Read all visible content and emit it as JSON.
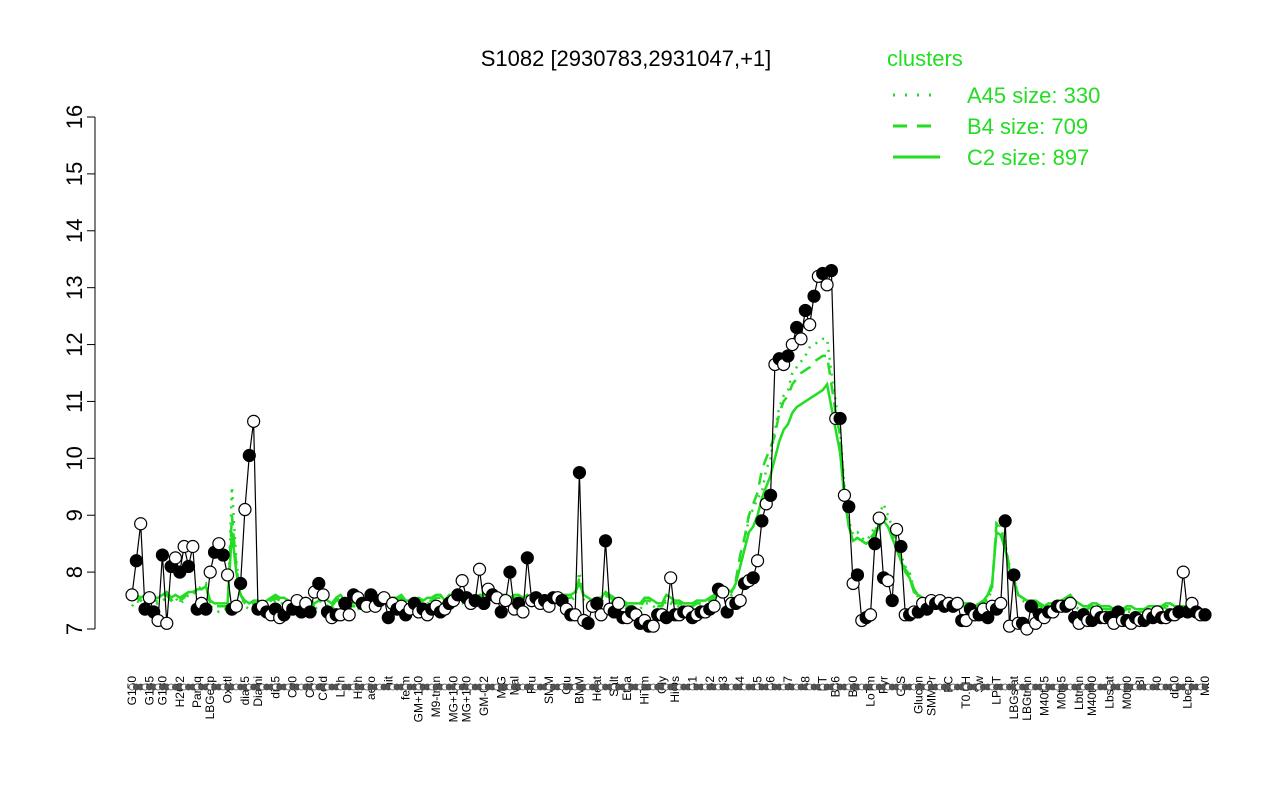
{
  "chart_data": {
    "type": "line",
    "title": "S1082 [2930783,2931047,+1]",
    "ylim": [
      7,
      16
    ],
    "yticks": [
      7,
      8,
      9,
      10,
      11,
      12,
      13,
      14,
      15,
      16
    ],
    "x_tick_labels": [
      "G150",
      "G135",
      "G180",
      "H2O2",
      "Paraq",
      "LBGexp",
      "Oxctl",
      "dia15",
      "Diami",
      "dia5",
      "C90",
      "C30",
      "Cold",
      "LPh",
      "HPh",
      "aero",
      "nit",
      "ferm",
      "GM+150",
      "M9-tran",
      "MG+150",
      "MG+120",
      "GM-0.2",
      "M/G",
      "Mal",
      "Fru",
      "SMM",
      "Glu",
      "BMM",
      "Heat",
      "Salt",
      "Etha",
      "HiTm",
      "Gly",
      "HiOs",
      "S1",
      "S2",
      "S3",
      "S4",
      "S5",
      "S6",
      "S7",
      "S8",
      "BT",
      "B36",
      "B60",
      "LoTm",
      "Pyr",
      "G/S",
      "Glucon",
      "SMMPr",
      "BC",
      "T0.0H",
      "Sw",
      "LPhT",
      "LBGstat",
      "LBGtran",
      "M40t45",
      "M0t45",
      "Lbtran",
      "M40t90",
      "Lbstat",
      "M0t90",
      "BI",
      "S0",
      "dia0",
      "Lbexp",
      "Mt0"
    ],
    "legend_title": "clusters",
    "legend": [
      {
        "label": "A45 size: 330",
        "style": "dotted"
      },
      {
        "label": "B4 size: 709",
        "style": "dashed"
      },
      {
        "label": "C2 size: 897",
        "style": "solid"
      }
    ],
    "colors": {
      "clusters": "#22dd22",
      "data_line": "#000000",
      "open_point": "#ffffff",
      "filled_point": "#000000"
    },
    "points": [
      7.6,
      8.2,
      8.85,
      7.35,
      7.55,
      7.3,
      7.15,
      8.3,
      7.1,
      8.1,
      8.25,
      8.0,
      8.45,
      8.1,
      8.45,
      7.35,
      7.45,
      7.35,
      8.0,
      8.35,
      8.5,
      8.3,
      7.95,
      7.35,
      7.4,
      7.8,
      9.1,
      10.05,
      10.65,
      7.35,
      7.4,
      7.3,
      7.25,
      7.35,
      7.2,
      7.25,
      7.4,
      7.35,
      7.5,
      7.3,
      7.45,
      7.3,
      7.65,
      7.8,
      7.6,
      7.3,
      7.2,
      7.25,
      7.25,
      7.45,
      7.25,
      7.6,
      7.55,
      7.45,
      7.4,
      7.6,
      7.4,
      7.5,
      7.55,
      7.2,
      7.45,
      7.35,
      7.4,
      7.25,
      7.35,
      7.45,
      7.3,
      7.35,
      7.25,
      7.35,
      7.4,
      7.3,
      7.35,
      7.45,
      7.5,
      7.6,
      7.85,
      7.55,
      7.45,
      7.5,
      8.05,
      7.45,
      7.7,
      7.6,
      7.55,
      7.3,
      7.5,
      8.0,
      7.35,
      7.45,
      7.3,
      8.25,
      7.5,
      7.55,
      7.45,
      7.5,
      7.4,
      7.55,
      7.55,
      7.5,
      7.35,
      7.25,
      7.25,
      9.75,
      7.15,
      7.1,
      7.4,
      7.45,
      7.25,
      8.55,
      7.35,
      7.3,
      7.45,
      7.2,
      7.2,
      7.3,
      7.25,
      7.1,
      7.15,
      7.05,
      7.05,
      7.25,
      7.25,
      7.2,
      7.9,
      7.25,
      7.25,
      7.3,
      7.3,
      7.2,
      7.25,
      7.3,
      7.3,
      7.35,
      7.4,
      7.7,
      7.65,
      7.3,
      7.45,
      7.45,
      7.5,
      7.8,
      7.85,
      7.9,
      8.2,
      8.9,
      9.2,
      9.35,
      11.65,
      11.75,
      11.65,
      11.8,
      12.0,
      12.3,
      12.1,
      12.6,
      12.35,
      12.85,
      13.2,
      13.25,
      13.05,
      13.3,
      10.7,
      10.7,
      9.35,
      9.15,
      7.8,
      7.95,
      7.15,
      7.2,
      7.25,
      8.5,
      8.95,
      7.9,
      7.85,
      7.5,
      8.75,
      8.45,
      7.25,
      7.25,
      7.3,
      7.3,
      7.45,
      7.35,
      7.5,
      7.45,
      7.5,
      7.4,
      7.45,
      7.4,
      7.45,
      7.15,
      7.15,
      7.35,
      7.25,
      7.25,
      7.35,
      7.2,
      7.4,
      7.35,
      7.45,
      8.9,
      7.05,
      7.95,
      7.1,
      7.1,
      7.0,
      7.4,
      7.1,
      7.25,
      7.2,
      7.3,
      7.3,
      7.4,
      7.4,
      7.4,
      7.45,
      7.2,
      7.1,
      7.25,
      7.15,
      7.15,
      7.3,
      7.2,
      7.2,
      7.2,
      7.1,
      7.3,
      7.15,
      7.15,
      7.1,
      7.2,
      7.15,
      7.15,
      7.25,
      7.2,
      7.3,
      7.2,
      7.2,
      7.25,
      7.25,
      7.3,
      8.0,
      7.3,
      7.45,
      7.3,
      7.25,
      7.25
    ],
    "cluster_series": [
      {
        "name": "A45",
        "values": [
          7.4,
          7.5,
          7.45,
          7.5,
          7.4,
          7.45,
          7.45,
          7.5,
          7.55,
          7.5,
          7.55,
          7.45,
          7.5,
          7.6,
          7.6,
          7.7,
          7.75,
          7.8,
          7.4,
          7.35,
          7.3,
          7.35,
          7.35,
          9.5,
          8.2,
          7.6,
          7.4,
          7.35,
          7.4,
          7.4,
          7.35,
          7.4,
          7.45,
          7.5,
          7.45,
          7.45,
          7.4,
          7.35,
          7.4,
          7.4,
          7.45,
          7.4,
          7.35,
          7.4,
          7.65,
          7.4,
          7.35,
          7.45,
          7.5,
          7.4,
          7.35,
          7.35,
          7.35,
          7.4,
          7.45,
          7.6,
          7.55,
          7.45,
          7.5,
          7.5,
          7.45,
          7.45,
          7.5,
          7.4,
          7.4,
          7.4,
          7.45,
          7.4,
          7.45,
          7.45,
          7.5,
          7.5,
          7.4,
          7.55,
          7.6,
          7.5,
          7.45,
          7.5,
          7.45,
          7.4,
          7.5,
          7.55,
          7.6,
          7.55,
          7.6,
          7.55,
          7.5,
          7.45,
          7.55,
          7.5,
          7.45,
          7.5,
          7.4,
          7.4,
          7.4,
          7.45,
          7.4,
          7.4,
          7.4,
          7.5,
          7.55,
          7.5,
          7.55,
          8.0,
          7.5,
          7.45,
          7.4,
          7.45,
          7.45,
          7.6,
          7.5,
          7.45,
          7.4,
          7.4,
          7.35,
          7.35,
          7.35,
          7.35,
          7.45,
          7.45,
          7.4,
          7.35,
          7.35,
          7.5,
          7.45,
          7.4,
          7.4,
          7.35,
          7.35,
          7.35,
          7.4,
          7.4,
          7.4,
          7.45,
          7.5,
          7.55,
          7.7,
          7.65,
          7.6,
          7.8,
          8.1,
          8.4,
          9.0,
          9.1,
          9.3,
          9.4,
          9.8,
          10.0,
          10.5,
          10.9,
          11.1,
          11.2,
          11.5,
          11.6,
          11.7,
          11.8,
          11.95,
          12.0,
          12.05,
          12.1,
          12.1,
          11.5,
          11.0,
          10.5,
          9.5,
          8.9,
          8.65,
          8.7,
          8.6,
          8.55,
          8.65,
          8.8,
          9.0,
          9.2,
          9.0,
          8.8,
          8.5,
          8.3,
          8.1,
          8.0,
          7.7,
          7.55,
          7.5,
          7.45,
          7.5,
          7.5,
          7.45,
          7.45,
          7.4,
          7.4,
          7.4,
          7.35,
          7.35,
          7.35,
          7.3,
          7.35,
          7.4,
          7.5,
          7.7,
          8.9,
          8.8,
          8.5,
          8.1,
          7.9,
          7.6,
          7.5,
          7.45,
          7.4,
          7.4,
          7.35,
          7.3,
          7.35,
          7.35,
          7.4,
          7.4,
          7.45,
          7.5,
          7.4,
          7.35,
          7.3,
          7.3,
          7.35,
          7.35,
          7.3,
          7.3,
          7.3,
          7.25,
          7.25,
          7.25,
          7.3,
          7.3,
          7.25,
          7.25,
          7.25,
          7.3,
          7.3,
          7.3,
          7.3,
          7.35,
          7.35,
          7.3,
          7.3,
          7.3,
          7.3,
          7.3
        ]
      },
      {
        "name": "B4",
        "values": [
          7.5,
          7.55,
          7.5,
          7.55,
          7.45,
          7.5,
          7.5,
          7.55,
          7.6,
          7.5,
          7.55,
          7.5,
          7.55,
          7.65,
          7.6,
          7.7,
          7.7,
          7.75,
          7.45,
          7.4,
          7.4,
          7.4,
          7.4,
          9.0,
          8.1,
          7.6,
          7.45,
          7.4,
          7.45,
          7.45,
          7.4,
          7.45,
          7.5,
          7.55,
          7.5,
          7.5,
          7.45,
          7.4,
          7.45,
          7.45,
          7.5,
          7.45,
          7.4,
          7.45,
          7.6,
          7.45,
          7.4,
          7.5,
          7.55,
          7.45,
          7.4,
          7.4,
          7.4,
          7.45,
          7.5,
          7.6,
          7.55,
          7.5,
          7.55,
          7.5,
          7.5,
          7.5,
          7.55,
          7.45,
          7.45,
          7.45,
          7.5,
          7.45,
          7.5,
          7.5,
          7.55,
          7.55,
          7.45,
          7.55,
          7.6,
          7.55,
          7.5,
          7.55,
          7.5,
          7.45,
          7.55,
          7.6,
          7.6,
          7.55,
          7.6,
          7.55,
          7.55,
          7.5,
          7.55,
          7.55,
          7.5,
          7.55,
          7.45,
          7.45,
          7.45,
          7.5,
          7.45,
          7.45,
          7.45,
          7.55,
          7.55,
          7.55,
          7.6,
          7.9,
          7.55,
          7.5,
          7.45,
          7.5,
          7.5,
          7.6,
          7.55,
          7.5,
          7.45,
          7.45,
          7.4,
          7.4,
          7.4,
          7.4,
          7.5,
          7.5,
          7.45,
          7.4,
          7.4,
          7.55,
          7.5,
          7.45,
          7.45,
          7.4,
          7.4,
          7.4,
          7.45,
          7.45,
          7.45,
          7.5,
          7.55,
          7.6,
          7.7,
          7.7,
          7.65,
          7.85,
          8.3,
          8.6,
          9.0,
          9.2,
          9.4,
          9.8,
          10.0,
          10.2,
          10.4,
          10.8,
          11.0,
          11.1,
          11.3,
          11.4,
          11.5,
          11.55,
          11.6,
          11.7,
          11.75,
          11.8,
          11.8,
          11.3,
          10.8,
          10.4,
          9.4,
          8.8,
          8.6,
          8.6,
          8.55,
          8.5,
          8.6,
          8.7,
          8.9,
          9.0,
          8.9,
          8.7,
          8.45,
          8.25,
          8.05,
          7.95,
          7.7,
          7.6,
          7.55,
          7.5,
          7.55,
          7.55,
          7.5,
          7.5,
          7.45,
          7.45,
          7.45,
          7.4,
          7.4,
          7.4,
          7.35,
          7.4,
          7.45,
          7.55,
          7.75,
          8.85,
          8.75,
          8.45,
          8.1,
          7.9,
          7.6,
          7.55,
          7.5,
          7.45,
          7.45,
          7.4,
          7.35,
          7.4,
          7.4,
          7.45,
          7.45,
          7.5,
          7.55,
          7.45,
          7.4,
          7.35,
          7.35,
          7.4,
          7.4,
          7.35,
          7.35,
          7.35,
          7.3,
          7.3,
          7.3,
          7.35,
          7.35,
          7.3,
          7.3,
          7.3,
          7.35,
          7.35,
          7.35,
          7.35,
          7.4,
          7.4,
          7.35,
          7.35,
          7.35,
          7.35,
          7.35
        ]
      },
      {
        "name": "C2",
        "values": [
          7.55,
          7.6,
          7.55,
          7.6,
          7.5,
          7.55,
          7.55,
          7.6,
          7.65,
          7.55,
          7.6,
          7.55,
          7.6,
          7.65,
          7.65,
          7.7,
          7.7,
          7.75,
          7.5,
          7.45,
          7.45,
          7.45,
          7.45,
          8.7,
          8.0,
          7.6,
          7.5,
          7.45,
          7.5,
          7.5,
          7.45,
          7.5,
          7.55,
          7.6,
          7.55,
          7.55,
          7.5,
          7.45,
          7.5,
          7.5,
          7.55,
          7.5,
          7.45,
          7.5,
          7.6,
          7.5,
          7.45,
          7.55,
          7.6,
          7.5,
          7.45,
          7.45,
          7.45,
          7.5,
          7.55,
          7.6,
          7.6,
          7.55,
          7.6,
          7.55,
          7.55,
          7.55,
          7.6,
          7.5,
          7.5,
          7.5,
          7.55,
          7.5,
          7.55,
          7.55,
          7.6,
          7.6,
          7.5,
          7.6,
          7.6,
          7.6,
          7.55,
          7.6,
          7.55,
          7.5,
          7.6,
          7.6,
          7.65,
          7.6,
          7.65,
          7.6,
          7.6,
          7.55,
          7.6,
          7.6,
          7.55,
          7.6,
          7.5,
          7.5,
          7.5,
          7.55,
          7.5,
          7.5,
          7.5,
          7.6,
          7.6,
          7.6,
          7.65,
          7.8,
          7.6,
          7.55,
          7.5,
          7.55,
          7.55,
          7.65,
          7.6,
          7.55,
          7.5,
          7.5,
          7.45,
          7.45,
          7.45,
          7.45,
          7.55,
          7.55,
          7.5,
          7.45,
          7.45,
          7.6,
          7.55,
          7.5,
          7.5,
          7.45,
          7.45,
          7.45,
          7.5,
          7.5,
          7.5,
          7.55,
          7.6,
          7.65,
          7.7,
          7.7,
          7.65,
          7.8,
          8.1,
          8.4,
          8.7,
          8.8,
          9.0,
          9.3,
          9.5,
          9.7,
          10.0,
          10.3,
          10.5,
          10.6,
          10.8,
          10.9,
          10.95,
          11.0,
          11.05,
          11.1,
          11.15,
          11.2,
          11.3,
          10.9,
          10.5,
          10.1,
          9.3,
          8.8,
          8.55,
          8.6,
          8.55,
          8.5,
          8.55,
          8.65,
          8.8,
          8.9,
          8.8,
          8.6,
          8.4,
          8.2,
          8.0,
          7.9,
          7.65,
          7.6,
          7.55,
          7.5,
          7.55,
          7.55,
          7.5,
          7.5,
          7.5,
          7.5,
          7.5,
          7.45,
          7.45,
          7.45,
          7.4,
          7.45,
          7.5,
          7.6,
          7.8,
          8.7,
          8.65,
          8.4,
          8.05,
          7.85,
          7.6,
          7.55,
          7.5,
          7.5,
          7.5,
          7.45,
          7.4,
          7.45,
          7.45,
          7.5,
          7.5,
          7.55,
          7.6,
          7.5,
          7.45,
          7.4,
          7.4,
          7.45,
          7.45,
          7.4,
          7.4,
          7.4,
          7.35,
          7.35,
          7.35,
          7.4,
          7.4,
          7.35,
          7.35,
          7.35,
          7.4,
          7.4,
          7.4,
          7.4,
          7.45,
          7.45,
          7.4,
          7.4,
          7.4,
          7.4,
          7.4
        ]
      }
    ]
  }
}
